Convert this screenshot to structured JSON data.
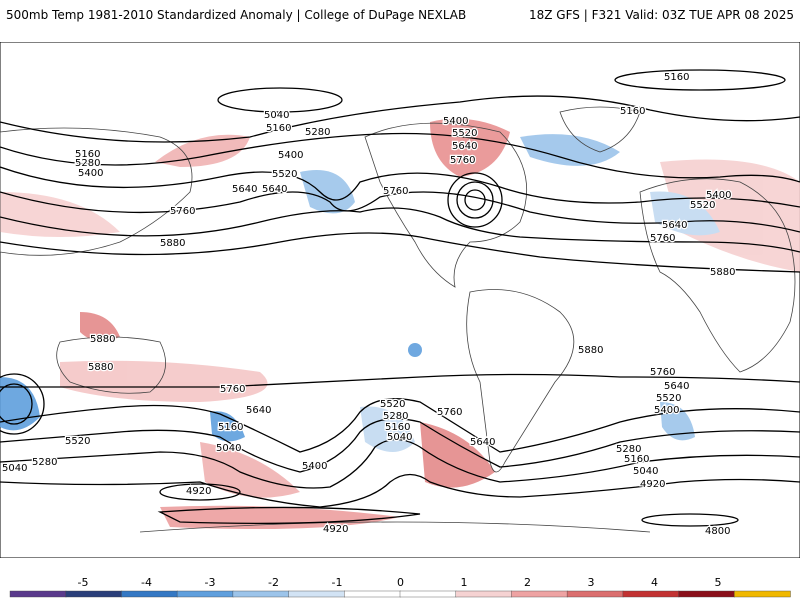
{
  "header": {
    "title_left": "500mb Temp 1981-2010 Standardized Anomaly | College of DuPage NEXLAB",
    "title_right": "18Z GFS | F321 Valid: 03Z TUE APR 08 2025"
  },
  "contour_labels": [
    "5160",
    "5160",
    "5040",
    "5160",
    "5280",
    "5400",
    "5520",
    "5640",
    "5760",
    "5400",
    "5520",
    "5640",
    "5760",
    "5160",
    "5280",
    "5400",
    "5640",
    "5520",
    "5760",
    "5880",
    "5400",
    "5520",
    "5640",
    "5760",
    "5880",
    "5880",
    "5880",
    "5880",
    "5760",
    "5640",
    "5160",
    "5040",
    "5520",
    "5280",
    "5040",
    "5400",
    "4920",
    "5520",
    "5280",
    "5160",
    "5040",
    "5760",
    "5640",
    "5760",
    "5640",
    "5520",
    "5400",
    "5280",
    "5160",
    "5040",
    "4920",
    "4920",
    "4800"
  ],
  "colorbar": {
    "ticks": [
      "-5",
      "-4",
      "-3",
      "-2",
      "-1",
      "0",
      "1",
      "2",
      "3",
      "4",
      "5"
    ],
    "colors": [
      "#5a3a8c",
      "#2a3f7a",
      "#3478c4",
      "#5f9fdd",
      "#9cc4ea",
      "#d2e3f4",
      "#ffffff",
      "#ffffff",
      "#f5d2d2",
      "#eea3a3",
      "#db6f6f",
      "#c23232",
      "#8a0f1a",
      "#f0b800"
    ]
  }
}
